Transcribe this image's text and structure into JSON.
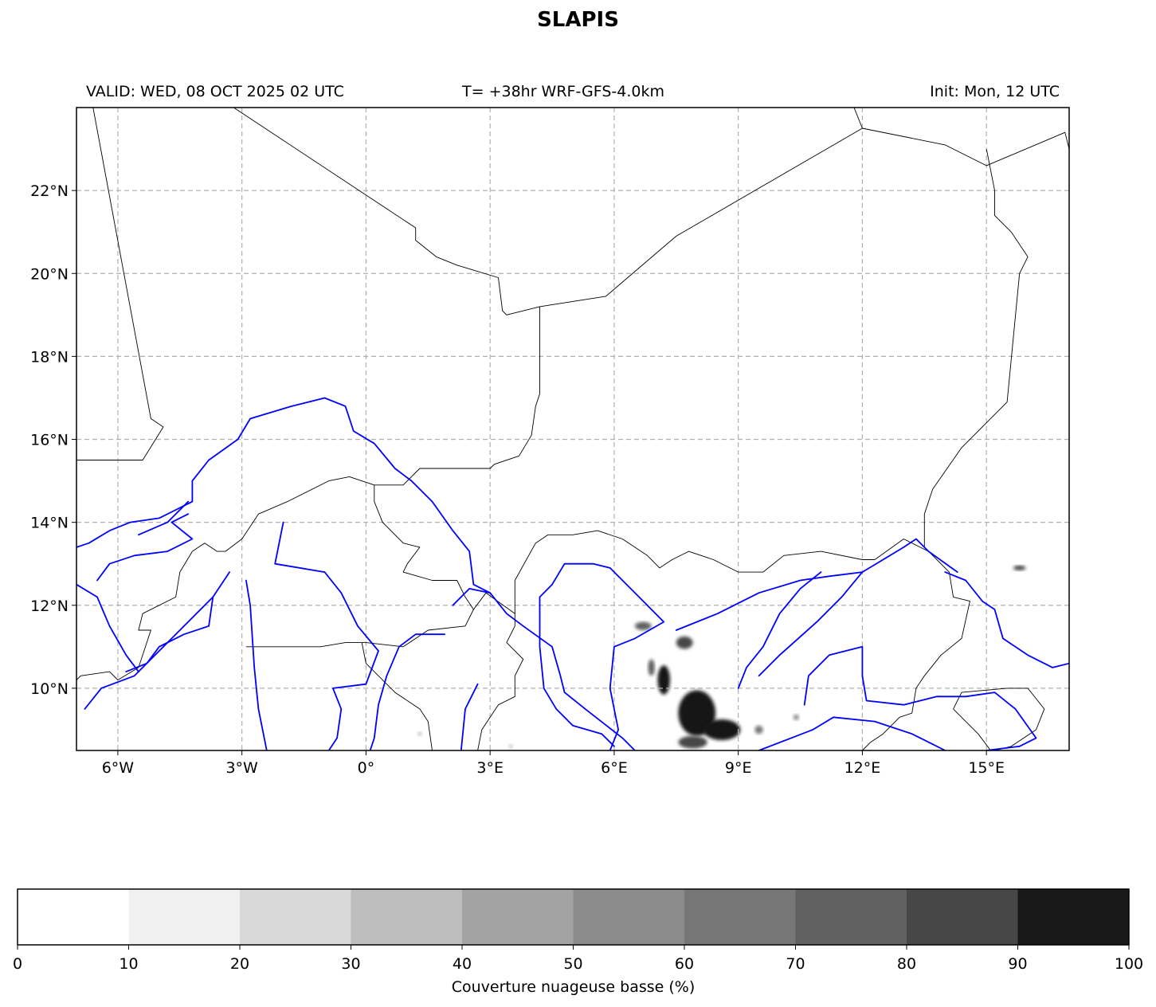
{
  "title": "SLAPIS",
  "header": {
    "valid": "VALID: WED, 08 OCT 2025 02 UTC",
    "run": "T= +38hr WRF-GFS-4.0km",
    "init": "Init: Mon, 12 UTC"
  },
  "map": {
    "extent": {
      "lon": [
        -7,
        17
      ],
      "lat": [
        8.5,
        24
      ]
    },
    "lon_ticks": [
      {
        "value": -6,
        "label": "6°W"
      },
      {
        "value": -3,
        "label": "3°W"
      },
      {
        "value": 0,
        "label": "0°"
      },
      {
        "value": 3,
        "label": "3°E"
      },
      {
        "value": 6,
        "label": "6°E"
      },
      {
        "value": 9,
        "label": "9°E"
      },
      {
        "value": 12,
        "label": "12°E"
      },
      {
        "value": 15,
        "label": "15°E"
      }
    ],
    "lat_ticks": [
      {
        "value": 10,
        "label": "10°N"
      },
      {
        "value": 12,
        "label": "12°N"
      },
      {
        "value": 14,
        "label": "14°N"
      },
      {
        "value": 16,
        "label": "16°N"
      },
      {
        "value": 18,
        "label": "18°N"
      },
      {
        "value": 20,
        "label": "20°N"
      },
      {
        "value": 22,
        "label": "22°N"
      }
    ],
    "colors": {
      "border": "#000000",
      "river": "#0000ff",
      "grid": "#b0b0b0"
    },
    "borders": [
      [
        [
          -6.6,
          24
        ],
        [
          -5.2,
          16.5
        ],
        [
          -4.9,
          16.3
        ],
        [
          -5.4,
          15.5
        ],
        [
          -7,
          15.5
        ]
      ],
      [
        [
          -3.2,
          24
        ],
        [
          1.2,
          21.1
        ],
        [
          1.2,
          20.8
        ],
        [
          1.7,
          20.4
        ],
        [
          2.2,
          20.2
        ],
        [
          3.2,
          19.9
        ],
        [
          3.3,
          19.1
        ],
        [
          3.4,
          19
        ],
        [
          4.2,
          19.2
        ],
        [
          5.8,
          19.45
        ],
        [
          7.5,
          20.9
        ],
        [
          12,
          23.5
        ],
        [
          14,
          23.1
        ],
        [
          15,
          22.6
        ],
        [
          16.9,
          23.4
        ],
        [
          17,
          23
        ]
      ],
      [
        [
          11.8,
          24
        ],
        [
          12,
          23.5
        ]
      ],
      [
        [
          15,
          23
        ],
        [
          15.2,
          22
        ],
        [
          15.2,
          21.4
        ],
        [
          15.6,
          21
        ],
        [
          16,
          20.4
        ],
        [
          15.8,
          20
        ],
        [
          15.5,
          16.9
        ],
        [
          14.4,
          15.8
        ],
        [
          13.7,
          14.8
        ],
        [
          13.5,
          14.2
        ],
        [
          13.5,
          13.4
        ],
        [
          13.6,
          13.3
        ]
      ],
      [
        [
          4.2,
          19.2
        ],
        [
          4.2,
          17.1
        ],
        [
          4.1,
          16.8
        ],
        [
          4,
          16.1
        ],
        [
          3.7,
          15.6
        ],
        [
          3.1,
          15.4
        ],
        [
          3,
          15.3
        ],
        [
          1.3,
          15.3
        ],
        [
          0.9,
          14.9
        ],
        [
          0.2,
          14.9
        ],
        [
          -0.4,
          15.1
        ],
        [
          -0.9,
          15
        ],
        [
          -1.9,
          14.5
        ],
        [
          -2.6,
          14.2
        ],
        [
          -3,
          13.6
        ],
        [
          -3.4,
          13.3
        ],
        [
          -3.6,
          13.3
        ],
        [
          -3.9,
          13.5
        ],
        [
          -4.2,
          13.3
        ],
        [
          -4.5,
          12.8
        ],
        [
          -4.6,
          12.2
        ],
        [
          -5.4,
          11.8
        ],
        [
          -5.5,
          11.4
        ],
        [
          -5.2,
          11.4
        ],
        [
          -5.5,
          10.5
        ],
        [
          -6,
          10.2
        ],
        [
          -6.2,
          10.4
        ],
        [
          -6.9,
          10.3
        ],
        [
          -7,
          10.2
        ]
      ],
      [
        [
          0.2,
          14.9
        ],
        [
          0.2,
          14.5
        ],
        [
          0.4,
          14
        ],
        [
          0.9,
          13.5
        ],
        [
          1.3,
          13.4
        ],
        [
          1.0,
          13.0
        ],
        [
          0.9,
          12.8
        ],
        [
          1.6,
          12.6
        ],
        [
          2.2,
          12.6
        ],
        [
          2.4,
          12.2
        ],
        [
          2.6,
          11.9
        ],
        [
          2.9,
          12.3
        ],
        [
          3.6,
          11.8
        ],
        [
          3.6,
          11.5
        ],
        [
          3.4,
          11.1
        ],
        [
          3.8,
          10.7
        ],
        [
          3.6,
          10.3
        ],
        [
          3.6,
          9.8
        ],
        [
          3.2,
          9.6
        ],
        [
          2.8,
          9
        ],
        [
          2.7,
          8.5
        ]
      ],
      [
        [
          3.6,
          11.8
        ],
        [
          3.6,
          12.6
        ],
        [
          4.1,
          13.5
        ],
        [
          4.4,
          13.7
        ],
        [
          5.0,
          13.7
        ],
        [
          5.6,
          13.8
        ],
        [
          6.2,
          13.6
        ],
        [
          6.8,
          13.2
        ],
        [
          7.1,
          12.9
        ],
        [
          7.4,
          13.1
        ],
        [
          7.8,
          13.3
        ],
        [
          8.4,
          13.1
        ],
        [
          9.0,
          12.8
        ],
        [
          9.6,
          12.8
        ],
        [
          10.1,
          13.2
        ],
        [
          11.0,
          13.3
        ],
        [
          12.0,
          13.1
        ],
        [
          12.3,
          13.1
        ],
        [
          13.0,
          13.6
        ],
        [
          13.6,
          13.3
        ]
      ],
      [
        [
          13.6,
          13.3
        ],
        [
          14.1,
          12.8
        ],
        [
          14.2,
          12.2
        ],
        [
          14.6,
          12.1
        ],
        [
          14.4,
          11.2
        ],
        [
          13.9,
          10.8
        ],
        [
          13.5,
          10.3
        ],
        [
          13.3,
          10
        ],
        [
          13.2,
          9.4
        ],
        [
          12.9,
          9.3
        ],
        [
          12.5,
          8.9
        ],
        [
          12.2,
          8.7
        ],
        [
          12.0,
          8.5
        ]
      ],
      [
        [
          2.6,
          11.9
        ],
        [
          2.4,
          11.5
        ],
        [
          1.5,
          11.4
        ],
        [
          0.9,
          11
        ],
        [
          0,
          11.1
        ],
        [
          -0.5,
          11.1
        ],
        [
          -1.1,
          11.0
        ],
        [
          -2.9,
          11.0
        ]
      ],
      [
        [
          -0.1,
          11.1
        ],
        [
          0.0,
          10.6
        ],
        [
          0.3,
          10.3
        ],
        [
          0.7,
          9.9
        ],
        [
          1.3,
          9.5
        ],
        [
          1.5,
          9.2
        ],
        [
          1.6,
          8.5
        ]
      ],
      [
        [
          14.2,
          9.5
        ],
        [
          14.4,
          9.9
        ],
        [
          15.5,
          10.0
        ],
        [
          16,
          10.0
        ],
        [
          16.4,
          9.5
        ],
        [
          16.2,
          9.0
        ],
        [
          15.6,
          8.6
        ],
        [
          15.2,
          8.5
        ]
      ],
      [
        [
          14.2,
          9.5
        ],
        [
          14.8,
          8.9
        ],
        [
          15.1,
          8.5
        ]
      ]
    ],
    "rivers": [
      [
        [
          -7,
          13.4
        ],
        [
          -6.7,
          13.5
        ],
        [
          -6.2,
          13.8
        ],
        [
          -5.7,
          14
        ],
        [
          -5,
          14.1
        ],
        [
          -4.6,
          14.3
        ],
        [
          -4.2,
          14.5
        ],
        [
          -4.2,
          15
        ],
        [
          -3.8,
          15.5
        ],
        [
          -3.1,
          16
        ],
        [
          -2.8,
          16.5
        ],
        [
          -1.8,
          16.8
        ],
        [
          -1,
          17.0
        ],
        [
          -0.5,
          16.8
        ],
        [
          -0.3,
          16.2
        ],
        [
          0.2,
          15.9
        ],
        [
          0.7,
          15.3
        ],
        [
          1.1,
          15
        ],
        [
          1.6,
          14.5
        ],
        [
          2.1,
          13.8
        ],
        [
          2.5,
          13.3
        ],
        [
          2.6,
          12.5
        ],
        [
          3.0,
          12.3
        ],
        [
          3.4,
          11.8
        ],
        [
          3.8,
          11.5
        ],
        [
          4.5,
          11.0
        ],
        [
          4.7,
          10.3
        ],
        [
          4.8,
          9.9
        ],
        [
          5.3,
          9.5
        ],
        [
          6.2,
          8.8
        ],
        [
          6.5,
          8.5
        ]
      ],
      [
        [
          -7,
          12.5
        ],
        [
          -6.5,
          12.2
        ],
        [
          -6.2,
          11.5
        ],
        [
          -5.8,
          10.8
        ],
        [
          -5.5,
          10.4
        ]
      ],
      [
        [
          -4.3,
          14.2
        ],
        [
          -4.7,
          14.0
        ],
        [
          -4.2,
          13.6
        ],
        [
          -4.8,
          13.3
        ],
        [
          -5.6,
          13.2
        ],
        [
          -6.2,
          13.0
        ],
        [
          -6.5,
          12.6
        ]
      ],
      [
        [
          -2.0,
          14.0
        ],
        [
          -2.2,
          13.0
        ],
        [
          -1.0,
          12.8
        ],
        [
          -0.6,
          12.3
        ],
        [
          -0.2,
          11.5
        ],
        [
          0.3,
          10.9
        ],
        [
          0,
          10.1
        ],
        [
          -0.8,
          10.0
        ],
        [
          -0.6,
          9.5
        ],
        [
          -0.7,
          8.8
        ],
        [
          -0.9,
          8.5
        ]
      ],
      [
        [
          -3.3,
          12.8
        ],
        [
          -3.7,
          12.2
        ],
        [
          -4.8,
          11.1
        ],
        [
          -5.6,
          10.3
        ],
        [
          -6.4,
          10.0
        ],
        [
          -6.8,
          9.5
        ]
      ],
      [
        [
          -2.9,
          12.6
        ],
        [
          -2.8,
          12.0
        ],
        [
          -2.7,
          10.5
        ],
        [
          -2.6,
          9.5
        ],
        [
          -2.4,
          8.5
        ]
      ],
      [
        [
          -4.3,
          14.5
        ],
        [
          -4.8,
          14.0
        ],
        [
          -5.5,
          13.7
        ]
      ],
      [
        [
          -3.7,
          12.2
        ],
        [
          -3.8,
          11.5
        ],
        [
          -4.4,
          11.3
        ],
        [
          -5,
          11
        ],
        [
          -5.3,
          10.6
        ],
        [
          -5.8,
          10.4
        ]
      ],
      [
        [
          3.0,
          12.3
        ],
        [
          2.5,
          12.4
        ],
        [
          2.1,
          12.0
        ]
      ],
      [
        [
          1.9,
          11.3
        ],
        [
          1.2,
          11.3
        ],
        [
          0.8,
          11.0
        ],
        [
          0.5,
          10.3
        ],
        [
          0.3,
          9.6
        ],
        [
          0.2,
          8.8
        ],
        [
          0.1,
          8.5
        ]
      ],
      [
        [
          2.7,
          10.1
        ],
        [
          2.4,
          9.5
        ],
        [
          2.3,
          8.5
        ]
      ],
      [
        [
          6.2,
          12.6
        ],
        [
          5.9,
          12.9
        ],
        [
          5.5,
          13.0
        ],
        [
          4.8,
          13.0
        ],
        [
          4.5,
          12.5
        ],
        [
          4.2,
          12.2
        ],
        [
          4.2,
          11.0
        ],
        [
          4.3,
          10.0
        ],
        [
          4.6,
          9.5
        ],
        [
          5.0,
          9.1
        ],
        [
          5.7,
          8.9
        ],
        [
          6.0,
          8.6
        ]
      ],
      [
        [
          6.2,
          12.6
        ],
        [
          6.8,
          12.0
        ],
        [
          7.2,
          11.6
        ],
        [
          6.5,
          11.2
        ],
        [
          6.0,
          11.0
        ],
        [
          5.9,
          10.0
        ],
        [
          6.1,
          9.0
        ],
        [
          5.9,
          8.5
        ]
      ],
      [
        [
          7.5,
          11.4
        ],
        [
          8.5,
          11.8
        ],
        [
          9.5,
          12.3
        ],
        [
          10.5,
          12.6
        ],
        [
          11.2,
          12.7
        ],
        [
          12.0,
          12.8
        ],
        [
          12.5,
          13.1
        ],
        [
          13.0,
          13.4
        ],
        [
          13.3,
          13.6
        ],
        [
          13.6,
          13.3
        ],
        [
          14.3,
          12.8
        ]
      ],
      [
        [
          11.0,
          12.8
        ],
        [
          10.5,
          12.4
        ],
        [
          10.0,
          11.8
        ],
        [
          9.6,
          11.0
        ],
        [
          9.2,
          10.5
        ],
        [
          9.0,
          10.0
        ]
      ],
      [
        [
          12.0,
          12.8
        ],
        [
          11.5,
          12.2
        ],
        [
          10.9,
          11.6
        ],
        [
          10.0,
          10.8
        ],
        [
          9.5,
          10.3
        ]
      ],
      [
        [
          14.0,
          12.8
        ],
        [
          14.5,
          12.6
        ],
        [
          14.9,
          12.1
        ],
        [
          15.2,
          11.9
        ],
        [
          15.4,
          11.2
        ],
        [
          16.0,
          10.8
        ],
        [
          16.6,
          10.5
        ],
        [
          17,
          10.6
        ]
      ],
      [
        [
          10.6,
          9.6
        ],
        [
          10.7,
          10.3
        ],
        [
          11.2,
          10.8
        ],
        [
          12.0,
          11.0
        ],
        [
          12.0,
          10.3
        ],
        [
          12.1,
          9.7
        ],
        [
          13,
          9.6
        ],
        [
          13.8,
          9.8
        ],
        [
          14.5,
          9.8
        ],
        [
          15.2,
          9.9
        ],
        [
          15.7,
          9.5
        ],
        [
          16.2,
          8.8
        ],
        [
          15.8,
          8.6
        ],
        [
          15,
          8.5
        ]
      ],
      [
        [
          9.5,
          8.5
        ],
        [
          10.8,
          9.0
        ],
        [
          11.3,
          9.3
        ],
        [
          12.3,
          9.2
        ],
        [
          13.2,
          8.9
        ],
        [
          13.6,
          8.7
        ],
        [
          14.0,
          8.5
        ]
      ]
    ],
    "cloud_blobs": [
      {
        "lon": 8.0,
        "lat": 9.4,
        "rx": 0.45,
        "ry": 0.55,
        "cover": 95
      },
      {
        "lon": 8.6,
        "lat": 9.0,
        "rx": 0.45,
        "ry": 0.25,
        "cover": 92
      },
      {
        "lon": 7.9,
        "lat": 8.7,
        "rx": 0.35,
        "ry": 0.15,
        "cover": 85
      },
      {
        "lon": 7.2,
        "lat": 10.2,
        "rx": 0.15,
        "ry": 0.35,
        "cover": 90
      },
      {
        "lon": 7.7,
        "lat": 11.1,
        "rx": 0.2,
        "ry": 0.15,
        "cover": 88
      },
      {
        "lon": 6.7,
        "lat": 11.5,
        "rx": 0.2,
        "ry": 0.1,
        "cover": 75
      },
      {
        "lon": 6.9,
        "lat": 10.5,
        "rx": 0.08,
        "ry": 0.2,
        "cover": 70
      },
      {
        "lon": 15.8,
        "lat": 12.9,
        "rx": 0.15,
        "ry": 0.06,
        "cover": 88
      },
      {
        "lon": 9.5,
        "lat": 9.0,
        "rx": 0.1,
        "ry": 0.1,
        "cover": 60
      },
      {
        "lon": 10.4,
        "lat": 9.3,
        "rx": 0.07,
        "ry": 0.07,
        "cover": 55
      },
      {
        "lon": 1.3,
        "lat": 8.9,
        "rx": 0.05,
        "ry": 0.05,
        "cover": 30
      },
      {
        "lon": 3.5,
        "lat": 8.6,
        "rx": 0.05,
        "ry": 0.05,
        "cover": 30
      }
    ]
  },
  "colorbar": {
    "label": "Couverture nuageuse basse (%)",
    "ticks": [
      "0",
      "10",
      "20",
      "30",
      "40",
      "50",
      "60",
      "70",
      "80",
      "90",
      "100"
    ],
    "colors": [
      "#ffffff",
      "#f0f0f0",
      "#d9d9d9",
      "#bdbdbd",
      "#a3a3a3",
      "#8c8c8c",
      "#777777",
      "#606060",
      "#474747",
      "#191919"
    ]
  }
}
